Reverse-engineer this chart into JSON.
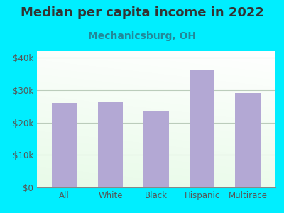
{
  "title": "Median per capita income in 2022",
  "subtitle": "Mechanicsburg, OH",
  "categories": [
    "All",
    "White",
    "Black",
    "Hispanic",
    "Multirace"
  ],
  "values": [
    26000,
    26500,
    23500,
    36000,
    29000
  ],
  "bar_color": "#b3a8d4",
  "background_outer": "#00eeff",
  "title_color": "#333333",
  "subtitle_color": "#228899",
  "axis_label_color": "#555555",
  "ytick_labels": [
    "$0",
    "$10k",
    "$20k",
    "$30k",
    "$40k"
  ],
  "ytick_values": [
    0,
    10000,
    20000,
    30000,
    40000
  ],
  "ylim": [
    0,
    42000
  ],
  "title_fontsize": 13,
  "subtitle_fontsize": 10,
  "tick_fontsize": 8.5,
  "grid_color": "#bbccbb"
}
